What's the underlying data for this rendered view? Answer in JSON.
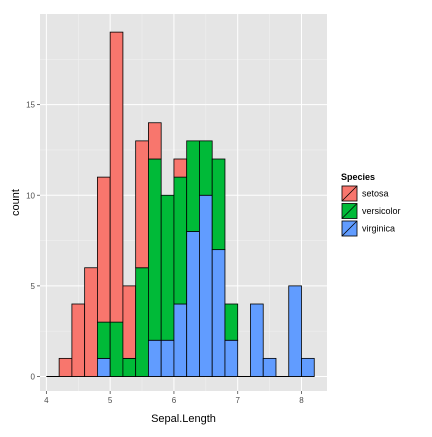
{
  "chart_data": {
    "type": "bar",
    "stacked": true,
    "title": "",
    "xlabel": "Sepal.Length",
    "ylabel": "count",
    "xlim": [
      3.9,
      8.4
    ],
    "ylim": [
      -0.8,
      20
    ],
    "xticks": [
      4,
      5,
      6,
      7,
      8
    ],
    "yticks": [
      0,
      5,
      10,
      15
    ],
    "bin_width": 0.2,
    "bin_starts": [
      4.0,
      4.2,
      4.4,
      4.6,
      4.8,
      5.0,
      5.2,
      5.4,
      5.6,
      5.8,
      6.0,
      6.2,
      6.4,
      6.6,
      6.8,
      7.0,
      7.2,
      7.4,
      7.6,
      7.8,
      8.0
    ],
    "series": [
      {
        "name": "setosa",
        "color": "#F8766D",
        "values": [
          0,
          1,
          4,
          6,
          8,
          16,
          4,
          7,
          2,
          0,
          1,
          0,
          0,
          0,
          0,
          0,
          0,
          0,
          0,
          0,
          0
        ]
      },
      {
        "name": "versicolor",
        "color": "#00BA38",
        "values": [
          0,
          0,
          0,
          0,
          2,
          3,
          1,
          6,
          10,
          8,
          7,
          5,
          3,
          5,
          2,
          0,
          0,
          0,
          0,
          0,
          0
        ]
      },
      {
        "name": "virginica",
        "color": "#619CFF",
        "values": [
          0,
          0,
          0,
          0,
          1,
          0,
          0,
          0,
          2,
          2,
          4,
          8,
          10,
          7,
          2,
          0,
          4,
          1,
          0,
          5,
          1
        ]
      }
    ],
    "legend": {
      "title": "Species",
      "position": "right"
    },
    "grid": true,
    "colors": {
      "panel_background": "#E5E5E5",
      "grid_major": "#FFFFFF",
      "grid_minor": "#F2F2F2",
      "bar_outline": "#000000"
    }
  }
}
